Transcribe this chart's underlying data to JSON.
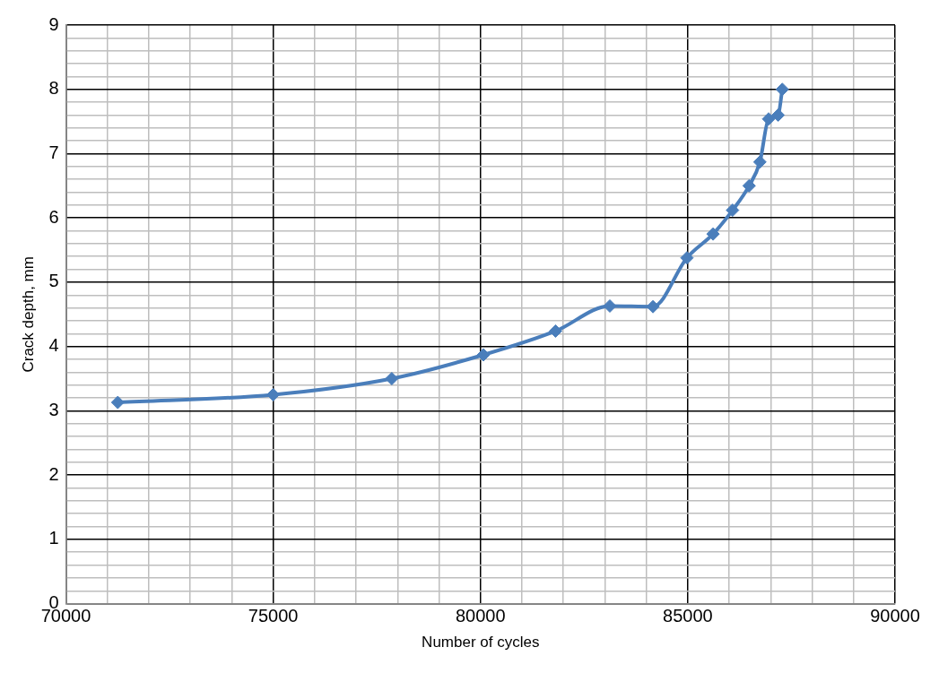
{
  "chart_data": {
    "type": "line",
    "xlabel": "Number of cycles",
    "ylabel": "Crack depth, mm",
    "x": [
      71250,
      75000,
      77860,
      80070,
      81810,
      83120,
      84160,
      84980,
      85610,
      86080,
      86480,
      86740,
      86950,
      87180,
      87280
    ],
    "series": [
      {
        "color": "#4a7ebb",
        "values": [
          3.13,
          3.25,
          3.5,
          3.87,
          4.24,
          4.63,
          4.62,
          5.38,
          5.75,
          6.12,
          6.5,
          6.87,
          7.54,
          7.6,
          8.0
        ]
      }
    ],
    "xlim": [
      70000,
      90000
    ],
    "xticks": [
      70000,
      {
        "value": 71000,
        "label": null
      },
      {
        "value": 72000,
        "label": null
      },
      {
        "value": 73000,
        "label": null
      },
      {
        "value": 74000,
        "label": null
      },
      75000,
      {
        "value": 76000,
        "label": null
      },
      {
        "value": 77000,
        "label": null
      },
      {
        "value": 78000,
        "label": null
      },
      {
        "value": 79000,
        "label": null
      },
      80000,
      {
        "value": 81000,
        "label": null
      },
      {
        "value": 82000,
        "label": null
      },
      {
        "value": 83000,
        "label": null
      },
      {
        "value": 84000,
        "label": null
      },
      85000,
      {
        "value": 86000,
        "label": null
      },
      {
        "value": 87000,
        "label": null
      },
      {
        "value": 88000,
        "label": null
      },
      {
        "value": 89000,
        "label": null
      },
      90000
    ],
    "ylim": [
      0,
      9
    ],
    "yticks": [
      0,
      {
        "value": 0.2,
        "label": null
      },
      {
        "value": 0.4,
        "label": null
      },
      {
        "value": 0.6,
        "label": null
      },
      {
        "value": 0.8,
        "label": null
      },
      1,
      {
        "value": 1.2,
        "label": null
      },
      {
        "value": 1.4,
        "label": null
      },
      {
        "value": 1.6,
        "label": null
      },
      {
        "value": 1.8,
        "label": null
      },
      2,
      {
        "value": 2.2,
        "label": null
      },
      {
        "value": 2.4,
        "label": null
      },
      {
        "value": 2.6,
        "label": null
      },
      {
        "value": 2.8,
        "label": null
      },
      3,
      {
        "value": 3.2,
        "label": null
      },
      {
        "value": 3.4,
        "label": null
      },
      {
        "value": 3.6,
        "label": null
      },
      {
        "value": 3.8,
        "label": null
      },
      4,
      {
        "value": 4.2,
        "label": null
      },
      {
        "value": 4.4,
        "label": null
      },
      {
        "value": 4.6,
        "label": null
      },
      {
        "value": 4.8,
        "label": null
      },
      5,
      {
        "value": 5.2,
        "label": null
      },
      {
        "value": 5.4,
        "label": null
      },
      {
        "value": 5.6,
        "label": null
      },
      {
        "value": 5.8,
        "label": null
      },
      6,
      {
        "value": 6.2,
        "label": null
      },
      {
        "value": 6.4,
        "label": null
      },
      {
        "value": 6.6,
        "label": null
      },
      {
        "value": 6.8,
        "label": null
      },
      7,
      {
        "value": 7.2,
        "label": null
      },
      {
        "value": 7.4,
        "label": null
      },
      {
        "value": 7.6,
        "label": null
      },
      {
        "value": 7.8,
        "label": null
      },
      8,
      {
        "value": 8.2,
        "label": null
      },
      {
        "value": 8.4,
        "label": null
      },
      {
        "value": 8.6,
        "label": null
      },
      {
        "value": 8.8,
        "label": null
      },
      9
    ],
    "grid": true,
    "legend": false,
    "marker": "diamond",
    "line_style": "solid"
  }
}
